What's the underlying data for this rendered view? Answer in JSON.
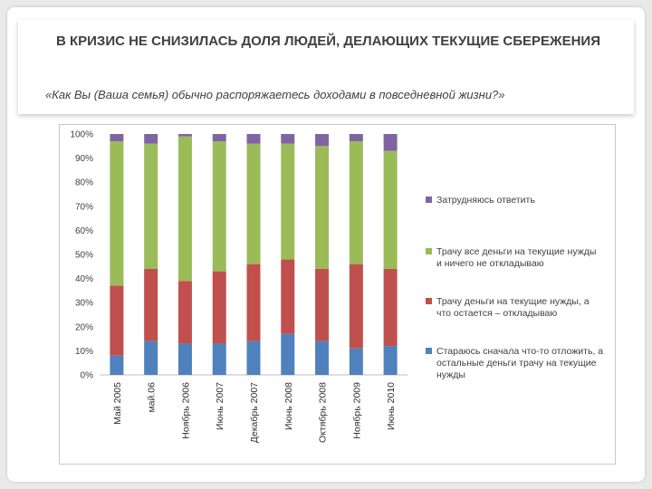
{
  "slide": {
    "title": "В КРИЗИС НЕ СНИЗИЛАСЬ ДОЛЯ ЛЮДЕЙ, ДЕЛАЮЩИХ ТЕКУЩИЕ СБЕРЕЖЕНИЯ",
    "subtitle": "«Как Вы (Ваша семья) обычно распоряжаетесь доходами в повседневной жизни?»"
  },
  "chart_data": {
    "type": "bar",
    "stacked": true,
    "categories": [
      "Май 2005",
      "май.06",
      "Ноябрь 2006",
      "Июнь 2007",
      "Декабрь 2007",
      "Июнь 2008",
      "Октябрь 2008",
      "Ноябрь 2009",
      "Июнь 2010"
    ],
    "y_ticks": [
      "0%",
      "10%",
      "20%",
      "30%",
      "40%",
      "50%",
      "60%",
      "70%",
      "80%",
      "90%",
      "100%"
    ],
    "ylim": [
      0,
      100
    ],
    "series": [
      {
        "name": "Стараюсь сначала что-то отложить, а остальные деньги трачу на текущие нужды",
        "color": "#4f81bd",
        "values": [
          8,
          14,
          13,
          13,
          14,
          17,
          14,
          11,
          12
        ]
      },
      {
        "name": "Трачу деньги на текущие нужды, а что остается – откладываю",
        "color": "#c0504d",
        "values": [
          29,
          30,
          26,
          30,
          32,
          31,
          30,
          35,
          32
        ]
      },
      {
        "name": "Трачу все деньги на текущие нужды и ничего не откладываю",
        "color": "#9bbb59",
        "values": [
          60,
          52,
          60,
          54,
          50,
          48,
          51,
          51,
          49
        ]
      },
      {
        "name": "Затрудняюсь ответить",
        "color": "#8064a2",
        "values": [
          3,
          4,
          1,
          3,
          4,
          4,
          5,
          3,
          7
        ]
      }
    ],
    "legend_order": [
      3,
      2,
      1,
      0
    ],
    "legend_position": "right",
    "grid": false
  }
}
